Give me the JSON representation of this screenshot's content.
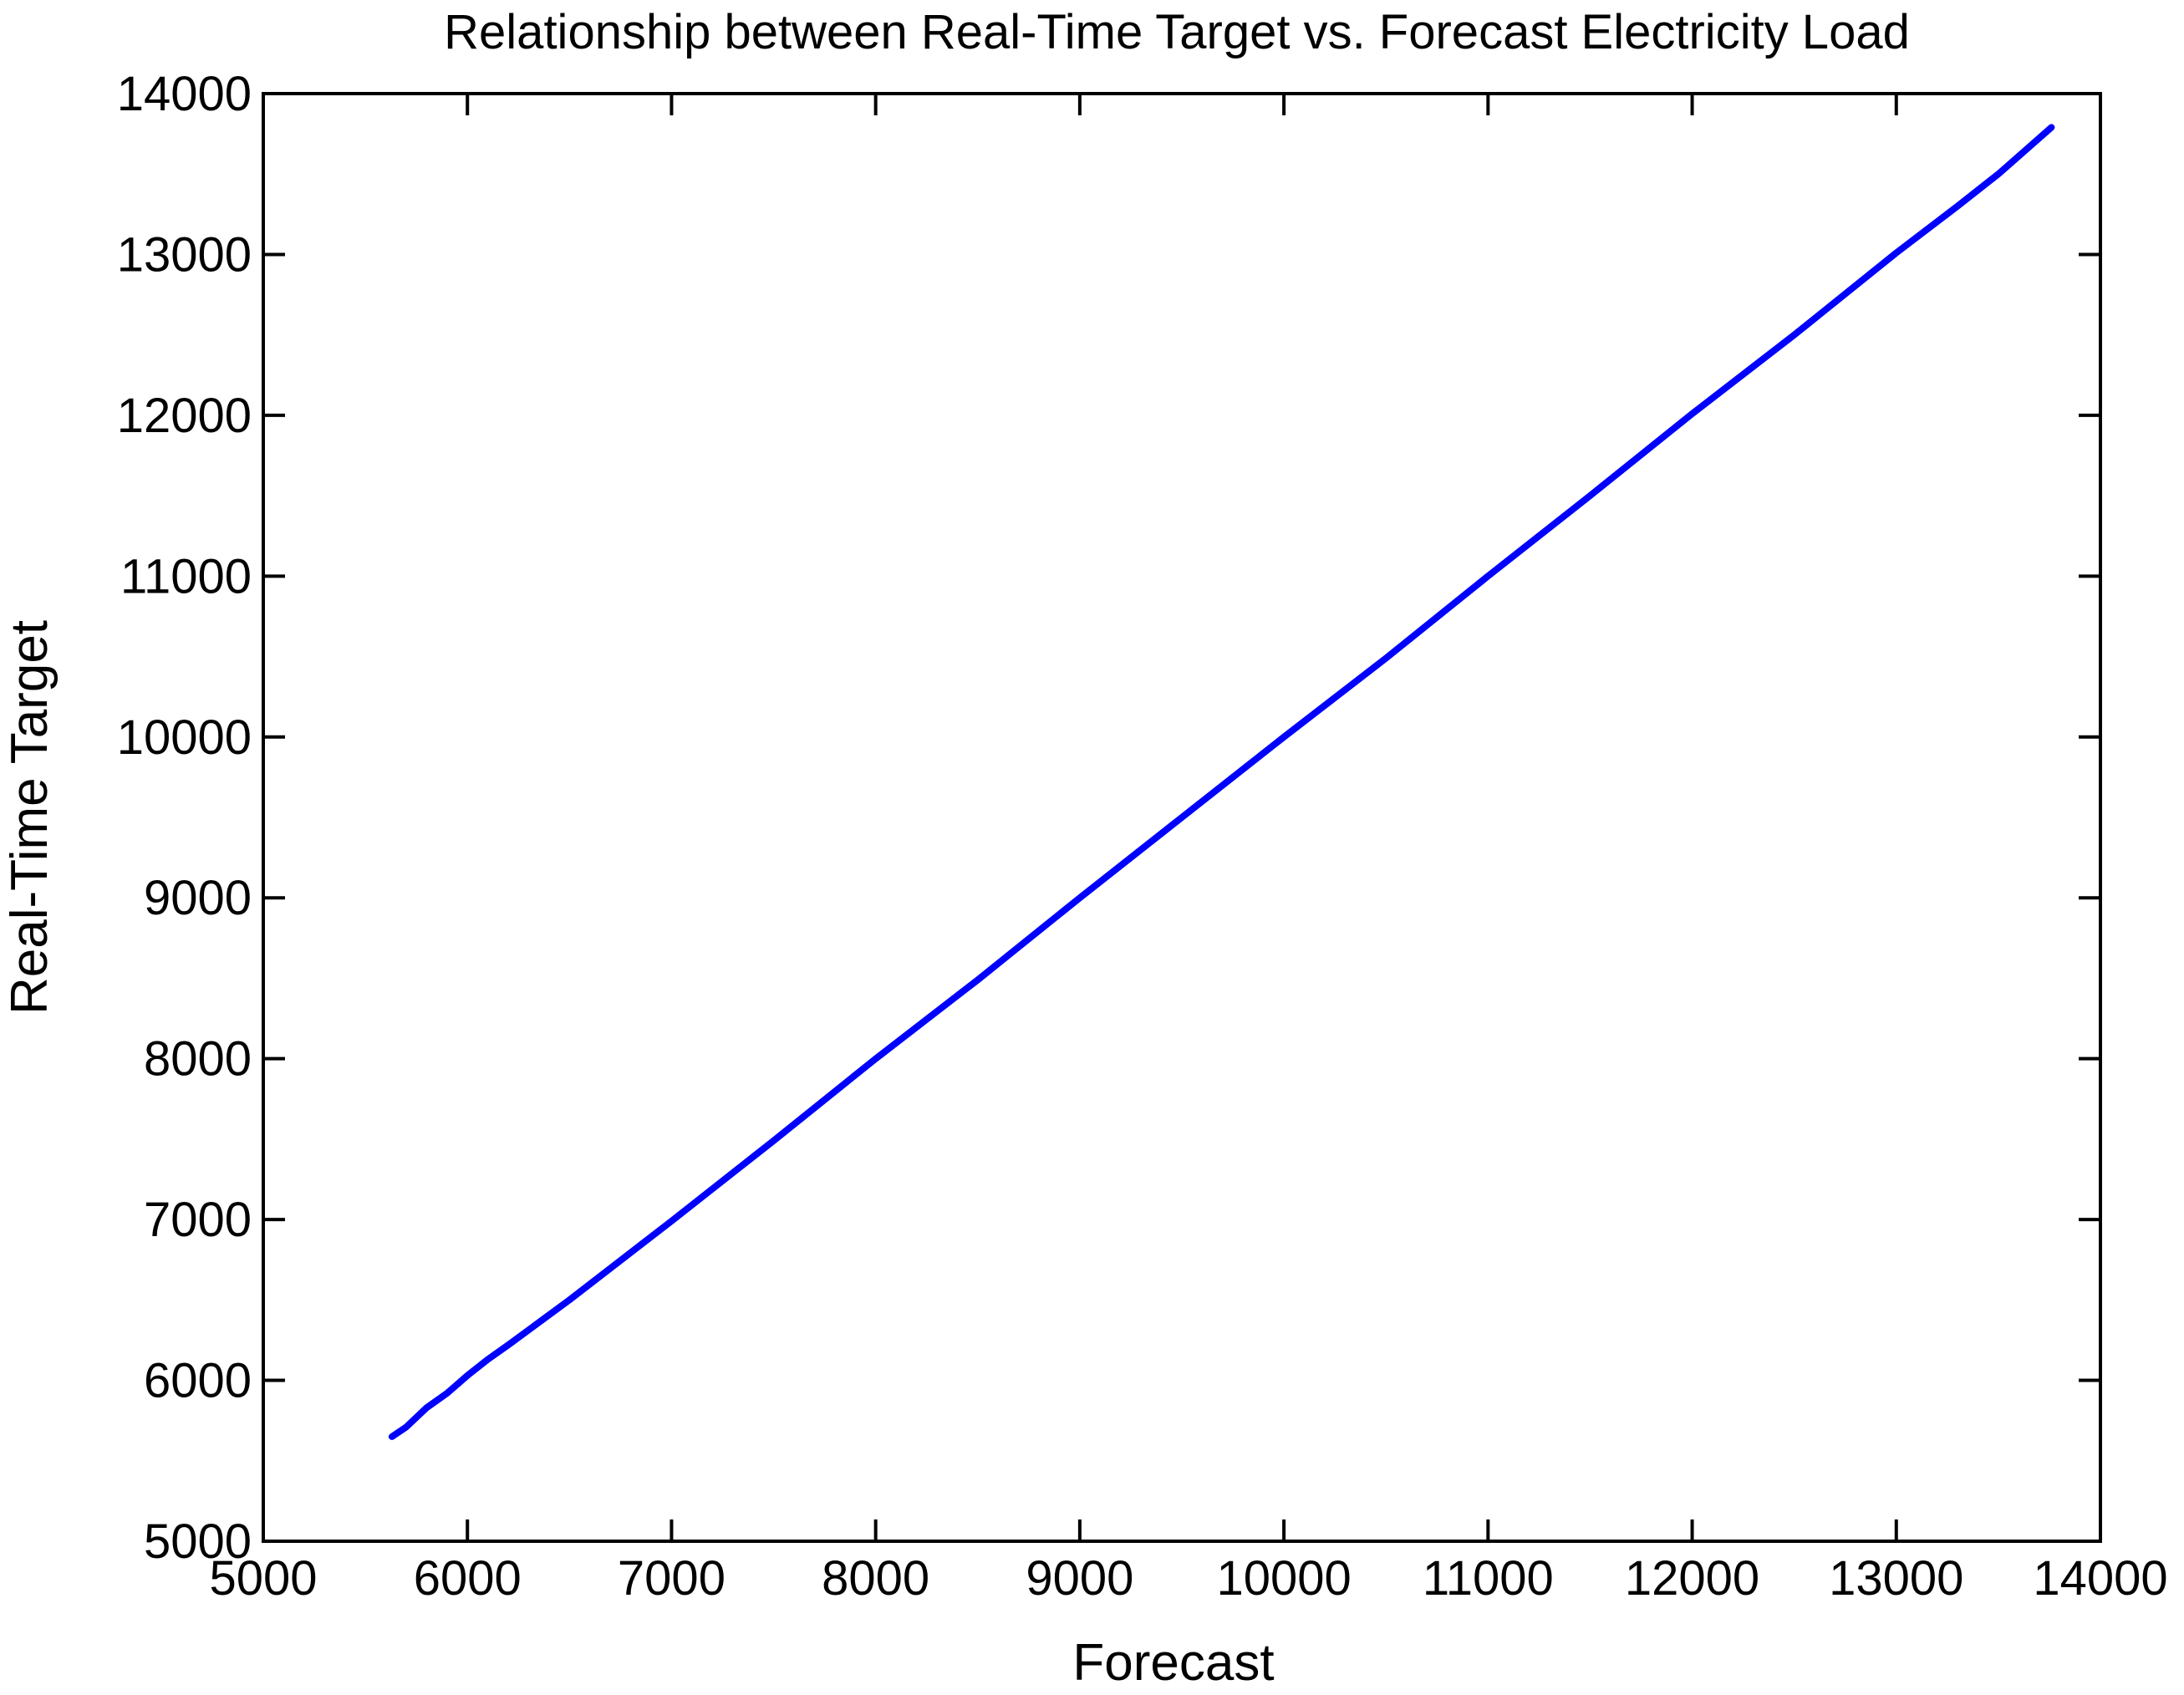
{
  "chart_data": {
    "type": "line",
    "title": "Relationship between Real-Time Target vs. Forecast Electricity Load",
    "xlabel": "Forecast",
    "ylabel": "Real-Time Target",
    "xlim": [
      5000,
      14000
    ],
    "ylim": [
      5000,
      14000
    ],
    "xticks": [
      "5000",
      "6000",
      "7000",
      "8000",
      "9000",
      "10000",
      "11000",
      "12000",
      "13000",
      "14000"
    ],
    "yticks": [
      "5000",
      "6000",
      "7000",
      "8000",
      "9000",
      "10000",
      "11000",
      "12000",
      "13000",
      "14000"
    ],
    "grid": false,
    "legend": "none",
    "color": "#0000ff",
    "series": [
      {
        "x": [
          5630,
          5700,
          5800,
          5900,
          6000,
          6100,
          6200,
          6500,
          7000,
          7500,
          8000,
          8500,
          9000,
          9500,
          10000,
          10500,
          11000,
          11500,
          12000,
          12500,
          13000,
          13300,
          13500,
          13760
        ],
        "y": [
          5650,
          5710,
          5830,
          5920,
          6030,
          6130,
          6220,
          6500,
          6990,
          7490,
          8000,
          8490,
          9000,
          9500,
          10000,
          10490,
          11000,
          11500,
          12010,
          12500,
          13010,
          13300,
          13500,
          13790
        ]
      }
    ]
  }
}
